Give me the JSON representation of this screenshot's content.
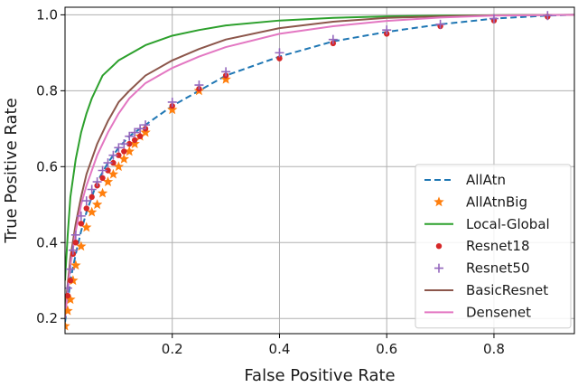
{
  "chart_data": {
    "type": "line",
    "title": "",
    "xlabel": "False Positive Rate",
    "ylabel": "True Positive Rate",
    "xlim": [
      0.0,
      0.95
    ],
    "ylim": [
      0.16,
      1.02
    ],
    "xticks": [
      0.2,
      0.4,
      0.6,
      0.8
    ],
    "xtick_labels": [
      "0.2",
      "0.4",
      "0.6",
      "0.8"
    ],
    "yticks": [
      0.2,
      0.4,
      0.6,
      0.8,
      1.0
    ],
    "ytick_labels": [
      "0.2",
      "0.4",
      "0.6",
      "0.8",
      "1.0"
    ],
    "grid": true,
    "legend_position": "bottom-right",
    "series": [
      {
        "name": "AllAtn",
        "kind": "line",
        "style": "dashed",
        "color": "#1f77b4",
        "x": [
          0.0,
          0.005,
          0.01,
          0.02,
          0.03,
          0.04,
          0.05,
          0.06,
          0.08,
          0.1,
          0.12,
          0.15,
          0.2,
          0.25,
          0.3,
          0.4,
          0.5,
          0.6,
          0.7,
          0.8,
          0.9,
          0.95
        ],
        "y": [
          0.19,
          0.24,
          0.3,
          0.37,
          0.43,
          0.48,
          0.52,
          0.56,
          0.61,
          0.65,
          0.68,
          0.71,
          0.76,
          0.8,
          0.84,
          0.89,
          0.93,
          0.955,
          0.975,
          0.99,
          0.998,
          1.0
        ]
      },
      {
        "name": "AllAtnBig",
        "kind": "marker",
        "marker": "star",
        "color": "#ff7f0e",
        "x": [
          0.0,
          0.005,
          0.01,
          0.015,
          0.02,
          0.03,
          0.04,
          0.05,
          0.06,
          0.07,
          0.08,
          0.09,
          0.1,
          0.11,
          0.12,
          0.13,
          0.14,
          0.15,
          0.2,
          0.25,
          0.3
        ],
        "y": [
          0.18,
          0.22,
          0.25,
          0.3,
          0.34,
          0.39,
          0.44,
          0.48,
          0.5,
          0.53,
          0.56,
          0.58,
          0.6,
          0.62,
          0.64,
          0.66,
          0.68,
          0.69,
          0.75,
          0.8,
          0.83
        ]
      },
      {
        "name": "Local-Global",
        "kind": "line",
        "style": "solid",
        "color": "#2ca02c",
        "x": [
          0.0,
          0.005,
          0.01,
          0.02,
          0.03,
          0.04,
          0.05,
          0.07,
          0.1,
          0.15,
          0.2,
          0.25,
          0.3,
          0.4,
          0.5,
          0.6,
          0.7,
          0.8,
          0.95
        ],
        "y": [
          0.3,
          0.42,
          0.52,
          0.62,
          0.69,
          0.74,
          0.78,
          0.84,
          0.88,
          0.92,
          0.945,
          0.96,
          0.972,
          0.985,
          0.992,
          0.996,
          0.998,
          0.999,
          1.0
        ]
      },
      {
        "name": "Resnet18",
        "kind": "marker",
        "marker": "circle",
        "color": "#d62728",
        "x": [
          0.005,
          0.01,
          0.015,
          0.02,
          0.03,
          0.04,
          0.05,
          0.06,
          0.07,
          0.08,
          0.09,
          0.1,
          0.11,
          0.12,
          0.13,
          0.14,
          0.15,
          0.2,
          0.25,
          0.3,
          0.4,
          0.5,
          0.6,
          0.7,
          0.8,
          0.9
        ],
        "y": [
          0.26,
          0.3,
          0.37,
          0.4,
          0.45,
          0.49,
          0.52,
          0.55,
          0.57,
          0.59,
          0.61,
          0.63,
          0.64,
          0.66,
          0.67,
          0.68,
          0.7,
          0.76,
          0.805,
          0.84,
          0.885,
          0.925,
          0.95,
          0.97,
          0.985,
          0.995
        ]
      },
      {
        "name": "Resnet50",
        "kind": "marker",
        "marker": "plus",
        "color": "#9467bd",
        "x": [
          0.005,
          0.01,
          0.015,
          0.02,
          0.03,
          0.04,
          0.05,
          0.06,
          0.07,
          0.08,
          0.09,
          0.1,
          0.11,
          0.12,
          0.13,
          0.14,
          0.15,
          0.2,
          0.25,
          0.3,
          0.4,
          0.5,
          0.6,
          0.7,
          0.8,
          0.9
        ],
        "y": [
          0.28,
          0.33,
          0.38,
          0.42,
          0.47,
          0.51,
          0.54,
          0.56,
          0.59,
          0.61,
          0.63,
          0.65,
          0.66,
          0.68,
          0.69,
          0.7,
          0.71,
          0.77,
          0.815,
          0.85,
          0.9,
          0.935,
          0.96,
          0.975,
          0.99,
          0.998
        ]
      },
      {
        "name": "BasicResnet",
        "kind": "line",
        "style": "solid",
        "color": "#8c564b",
        "x": [
          0.0,
          0.005,
          0.01,
          0.02,
          0.03,
          0.04,
          0.05,
          0.06,
          0.08,
          0.1,
          0.12,
          0.15,
          0.2,
          0.25,
          0.3,
          0.4,
          0.5,
          0.6,
          0.7,
          0.8,
          0.95
        ],
        "y": [
          0.22,
          0.29,
          0.36,
          0.45,
          0.52,
          0.58,
          0.62,
          0.66,
          0.72,
          0.77,
          0.8,
          0.84,
          0.88,
          0.91,
          0.935,
          0.965,
          0.982,
          0.992,
          0.996,
          0.999,
          1.0
        ]
      },
      {
        "name": "Densenet",
        "kind": "line",
        "style": "solid",
        "color": "#e377c2",
        "x": [
          0.0,
          0.005,
          0.01,
          0.02,
          0.03,
          0.04,
          0.05,
          0.06,
          0.08,
          0.1,
          0.12,
          0.15,
          0.2,
          0.25,
          0.3,
          0.4,
          0.5,
          0.6,
          0.7,
          0.8,
          0.95
        ],
        "y": [
          0.2,
          0.27,
          0.34,
          0.43,
          0.5,
          0.55,
          0.59,
          0.63,
          0.69,
          0.74,
          0.78,
          0.82,
          0.86,
          0.89,
          0.915,
          0.95,
          0.97,
          0.984,
          0.993,
          0.998,
          1.0
        ]
      }
    ]
  }
}
